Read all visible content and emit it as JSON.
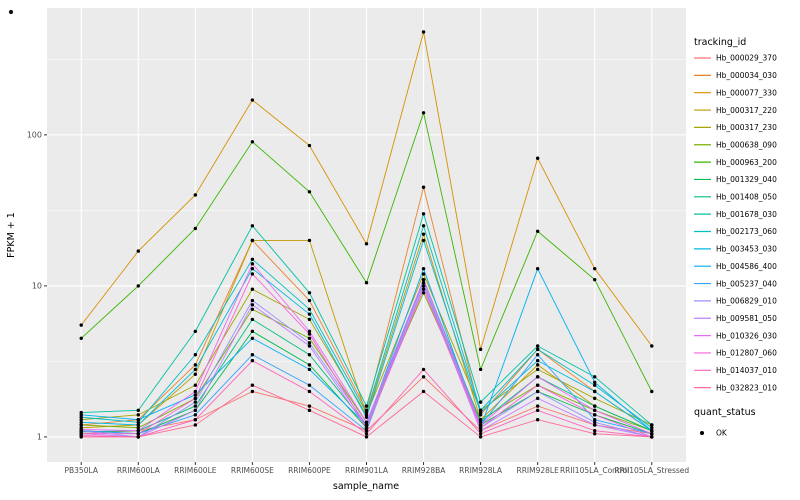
{
  "figure": {
    "background": "#FFFFFF",
    "panel_background": "#EBEBEB",
    "grid_color": "#FFFFFF",
    "tick_label_color": "#4D4D4D",
    "axis_title_color": "#000000",
    "point_color": "#000000"
  },
  "chart_data": {
    "type": "line",
    "title": "",
    "xlabel": "sample_name",
    "ylabel": "FPKM + 1",
    "y_scale": "log10",
    "y_ticks": [
      1,
      10,
      100
    ],
    "y_minor_ticks": [
      3.162,
      31.62,
      316.2
    ],
    "ylim_log10": [
      -0.166,
      2.84
    ],
    "grid": true,
    "legend_position": "right",
    "categories": [
      "PB350LA",
      "RRIM600LA",
      "RRIM600LE",
      "RRIM600SE",
      "RRIM600PE",
      "RRIM901LA",
      "RRIM928BA",
      "RRIM928LA",
      "RRIM928LE",
      "RRII105LA_Control",
      "RRII105LA_Stressed"
    ],
    "series": [
      {
        "name": "Hb_000029_370",
        "color": "#F8766D",
        "values": [
          1.05,
          1.1,
          1.3,
          2.0,
          1.6,
          1.1,
          2.5,
          1.1,
          1.6,
          1.2,
          1.05
        ]
      },
      {
        "name": "Hb_000034_030",
        "color": "#EA8331",
        "values": [
          1.2,
          1.3,
          3.0,
          20,
          8,
          1.5,
          45,
          1.4,
          3.8,
          2.0,
          1.1
        ]
      },
      {
        "name": "Hb_000077_330",
        "color": "#D89000",
        "values": [
          5.5,
          17,
          40,
          170,
          85,
          19,
          480,
          3.8,
          70,
          13,
          4.0
        ]
      },
      {
        "name": "Hb_000317_220",
        "color": "#C09B00",
        "values": [
          1.15,
          1.2,
          2.6,
          20,
          20,
          1.4,
          22,
          1.3,
          3.0,
          1.6,
          1.1
        ]
      },
      {
        "name": "Hb_000317_230",
        "color": "#A3A500",
        "values": [
          1.3,
          1.4,
          2.2,
          9.5,
          6.0,
          1.4,
          12,
          1.5,
          2.8,
          1.8,
          1.2
        ]
      },
      {
        "name": "Hb_000638_090",
        "color": "#7CAE00",
        "values": [
          1.2,
          1.15,
          1.8,
          7.0,
          4.5,
          1.25,
          9.0,
          1.3,
          2.2,
          1.5,
          1.1
        ]
      },
      {
        "name": "Hb_000963_200",
        "color": "#39B600",
        "values": [
          4.5,
          10,
          24,
          90,
          42,
          10.5,
          140,
          2.8,
          23,
          11,
          2.0
        ]
      },
      {
        "name": "Hb_001329_040",
        "color": "#00BB4E",
        "values": [
          1.1,
          1.05,
          1.5,
          5.0,
          3.0,
          1.15,
          10,
          1.2,
          2.0,
          1.4,
          1.05
        ]
      },
      {
        "name": "Hb_001408_050",
        "color": "#00BF7D",
        "values": [
          1.08,
          1.1,
          1.6,
          6.0,
          3.5,
          1.2,
          11,
          1.25,
          2.5,
          1.6,
          1.1
        ]
      },
      {
        "name": "Hb_001678_030",
        "color": "#00C1A3",
        "values": [
          1.45,
          1.5,
          5.0,
          25,
          9.0,
          1.6,
          30,
          1.7,
          4.0,
          2.5,
          1.2
        ]
      },
      {
        "name": "Hb_002173_060",
        "color": "#00BFC4",
        "values": [
          1.35,
          1.25,
          3.5,
          15,
          7.0,
          1.45,
          25,
          1.5,
          3.8,
          2.2,
          1.15
        ]
      },
      {
        "name": "Hb_003453_030",
        "color": "#00BAE0",
        "values": [
          1.25,
          1.2,
          2.8,
          13,
          6.5,
          1.35,
          20,
          1.45,
          3.2,
          2.0,
          1.1
        ]
      },
      {
        "name": "Hb_004586_400",
        "color": "#00B0F6",
        "values": [
          1.4,
          1.3,
          1.9,
          4.5,
          2.8,
          1.2,
          13,
          1.15,
          13,
          2.3,
          1.1
        ]
      },
      {
        "name": "Hb_005237_040",
        "color": "#35A2FF",
        "values": [
          1.1,
          1.05,
          1.4,
          3.5,
          2.2,
          1.1,
          11,
          1.2,
          3.5,
          1.3,
          1.05
        ]
      },
      {
        "name": "Hb_006829_010",
        "color": "#9590FF",
        "values": [
          1.1,
          1.0,
          1.7,
          8.0,
          4.2,
          1.2,
          10.5,
          1.15,
          2.0,
          1.25,
          1.0
        ]
      },
      {
        "name": "Hb_009581_050",
        "color": "#C77CFF",
        "values": [
          1.05,
          1.0,
          1.5,
          7.5,
          4.0,
          1.15,
          10,
          1.1,
          1.8,
          1.2,
          1.0
        ]
      },
      {
        "name": "Hb_010326_030",
        "color": "#E76BF3",
        "values": [
          1.12,
          1.1,
          2.0,
          14,
          5.0,
          1.25,
          11,
          1.2,
          2.5,
          1.5,
          1.05
        ]
      },
      {
        "name": "Hb_012807_060",
        "color": "#FA62DB",
        "values": [
          1.05,
          1.05,
          1.8,
          12,
          4.8,
          1.15,
          9.5,
          1.15,
          2.2,
          1.4,
          1.0
        ]
      },
      {
        "name": "Hb_014037_010",
        "color": "#FF62BC",
        "values": [
          1.02,
          1.0,
          1.3,
          3.2,
          2.0,
          1.05,
          2.8,
          1.05,
          1.5,
          1.1,
          1.0
        ]
      },
      {
        "name": "Hb_032823_010",
        "color": "#FF6A98",
        "values": [
          1.0,
          1.0,
          1.2,
          2.2,
          1.5,
          1.0,
          2.0,
          1.0,
          1.3,
          1.05,
          1.0
        ]
      }
    ],
    "legend": {
      "color_title": "tracking_id",
      "shape_title": "quant_status",
      "shape_items": [
        {
          "label": "OK"
        }
      ]
    }
  }
}
